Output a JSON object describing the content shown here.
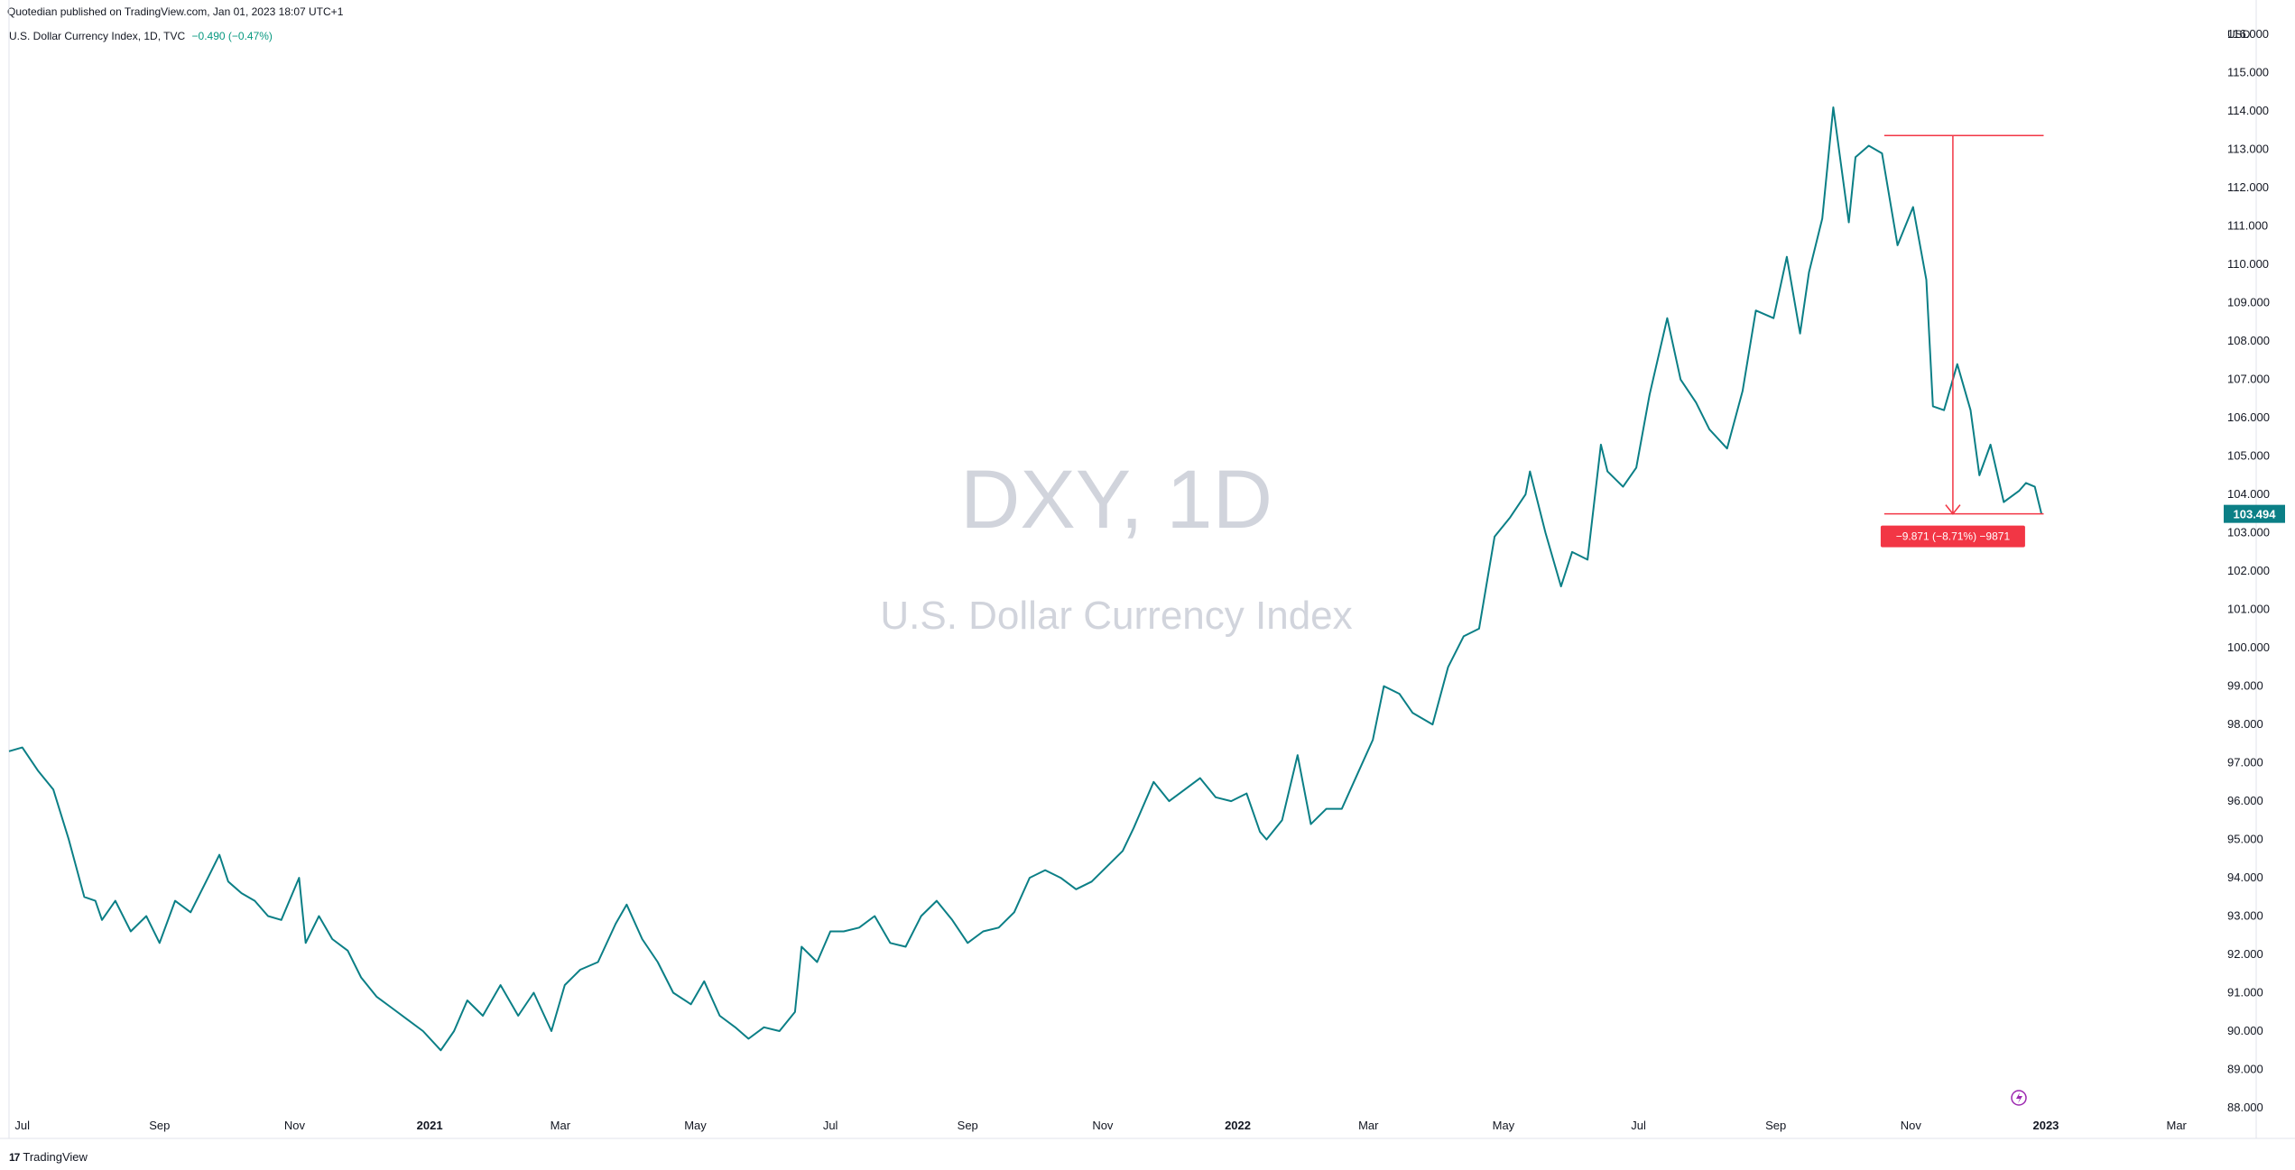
{
  "header": {
    "published": "Quotedian published on TradingView.com, Jan 01, 2023 18:07 UTC+1",
    "legend_name": "U.S. Dollar Currency Index, 1D, TVC",
    "legend_change": "−0.490 (−0.47%)"
  },
  "watermark": {
    "symbol": "DXY, 1D",
    "name": "U.S. Dollar Currency Index"
  },
  "footer": {
    "brand": "TradingView",
    "logo": "17"
  },
  "colors": {
    "line": "#0b7f86",
    "measure": "#f23645",
    "price_badge": "#0b7f86",
    "grid_text": "#131722",
    "watermark": "#d1d4dc"
  },
  "chart_data": {
    "type": "line",
    "currency_label": "USD",
    "y_ticks": [
      88,
      89,
      90,
      91,
      92,
      93,
      94,
      95,
      96,
      97,
      98,
      99,
      100,
      101,
      102,
      103,
      104,
      105,
      106,
      107,
      108,
      109,
      110,
      111,
      112,
      113,
      114,
      115,
      116
    ],
    "y_tick_labels": [
      "88.000",
      "89.000",
      "90.000",
      "91.000",
      "92.000",
      "93.000",
      "94.000",
      "95.000",
      "96.000",
      "97.000",
      "98.000",
      "99.000",
      "100.000",
      "101.000",
      "102.000",
      "103.000",
      "104.000",
      "105.000",
      "106.000",
      "107.000",
      "108.000",
      "109.000",
      "110.000",
      "111.000",
      "112.000",
      "113.000",
      "114.000",
      "115.000",
      "116.000"
    ],
    "ylim": [
      87.2,
      116.9
    ],
    "xlim": [
      "2020-06-25",
      "2023-04-06"
    ],
    "x_ticks": [
      {
        "date": "2020-07-01",
        "label": "Jul",
        "bold": false
      },
      {
        "date": "2020-09-01",
        "label": "Sep",
        "bold": false
      },
      {
        "date": "2020-11-01",
        "label": "Nov",
        "bold": false
      },
      {
        "date": "2021-01-01",
        "label": "2021",
        "bold": true
      },
      {
        "date": "2021-03-01",
        "label": "Mar",
        "bold": false
      },
      {
        "date": "2021-05-01",
        "label": "May",
        "bold": false
      },
      {
        "date": "2021-07-01",
        "label": "Jul",
        "bold": false
      },
      {
        "date": "2021-09-01",
        "label": "Sep",
        "bold": false
      },
      {
        "date": "2021-11-01",
        "label": "Nov",
        "bold": false
      },
      {
        "date": "2022-01-01",
        "label": "2022",
        "bold": true
      },
      {
        "date": "2022-03-01",
        "label": "Mar",
        "bold": false
      },
      {
        "date": "2022-05-01",
        "label": "May",
        "bold": false
      },
      {
        "date": "2022-07-01",
        "label": "Jul",
        "bold": false
      },
      {
        "date": "2022-09-01",
        "label": "Sep",
        "bold": false
      },
      {
        "date": "2022-11-01",
        "label": "Nov",
        "bold": false
      },
      {
        "date": "2023-01-01",
        "label": "2023",
        "bold": true
      },
      {
        "date": "2023-03-01",
        "label": "Mar",
        "bold": false
      }
    ],
    "series": [
      {
        "values": [
          [
            "2020-06-25",
            97.3
          ],
          [
            "2020-07-01",
            97.4
          ],
          [
            "2020-07-08",
            96.8
          ],
          [
            "2020-07-15",
            96.3
          ],
          [
            "2020-07-22",
            95.0
          ],
          [
            "2020-07-29",
            93.5
          ],
          [
            "2020-08-03",
            93.4
          ],
          [
            "2020-08-06",
            92.9
          ],
          [
            "2020-08-12",
            93.4
          ],
          [
            "2020-08-19",
            92.6
          ],
          [
            "2020-08-26",
            93.0
          ],
          [
            "2020-09-01",
            92.3
          ],
          [
            "2020-09-08",
            93.4
          ],
          [
            "2020-09-15",
            93.1
          ],
          [
            "2020-09-22",
            93.9
          ],
          [
            "2020-09-28",
            94.6
          ],
          [
            "2020-10-02",
            93.9
          ],
          [
            "2020-10-08",
            93.6
          ],
          [
            "2020-10-14",
            93.4
          ],
          [
            "2020-10-20",
            93.0
          ],
          [
            "2020-10-26",
            92.9
          ],
          [
            "2020-11-03",
            94.0
          ],
          [
            "2020-11-06",
            92.3
          ],
          [
            "2020-11-12",
            93.0
          ],
          [
            "2020-11-18",
            92.4
          ],
          [
            "2020-11-25",
            92.1
          ],
          [
            "2020-12-01",
            91.4
          ],
          [
            "2020-12-08",
            90.9
          ],
          [
            "2020-12-15",
            90.6
          ],
          [
            "2020-12-22",
            90.3
          ],
          [
            "2020-12-29",
            90.0
          ],
          [
            "2021-01-06",
            89.5
          ],
          [
            "2021-01-12",
            90.0
          ],
          [
            "2021-01-18",
            90.8
          ],
          [
            "2021-01-25",
            90.4
          ],
          [
            "2021-02-02",
            91.2
          ],
          [
            "2021-02-10",
            90.4
          ],
          [
            "2021-02-17",
            91.0
          ],
          [
            "2021-02-25",
            90.0
          ],
          [
            "2021-03-03",
            91.2
          ],
          [
            "2021-03-10",
            91.6
          ],
          [
            "2021-03-18",
            91.8
          ],
          [
            "2021-03-26",
            92.8
          ],
          [
            "2021-03-31",
            93.3
          ],
          [
            "2021-04-07",
            92.4
          ],
          [
            "2021-04-14",
            91.8
          ],
          [
            "2021-04-21",
            91.0
          ],
          [
            "2021-04-29",
            90.7
          ],
          [
            "2021-05-05",
            91.3
          ],
          [
            "2021-05-12",
            90.4
          ],
          [
            "2021-05-19",
            90.1
          ],
          [
            "2021-05-25",
            89.8
          ],
          [
            "2021-06-01",
            90.1
          ],
          [
            "2021-06-08",
            90.0
          ],
          [
            "2021-06-15",
            90.5
          ],
          [
            "2021-06-18",
            92.2
          ],
          [
            "2021-06-25",
            91.8
          ],
          [
            "2021-07-01",
            92.6
          ],
          [
            "2021-07-07",
            92.6
          ],
          [
            "2021-07-14",
            92.7
          ],
          [
            "2021-07-21",
            93.0
          ],
          [
            "2021-07-28",
            92.3
          ],
          [
            "2021-08-04",
            92.2
          ],
          [
            "2021-08-11",
            93.0
          ],
          [
            "2021-08-18",
            93.4
          ],
          [
            "2021-08-25",
            92.9
          ],
          [
            "2021-09-01",
            92.3
          ],
          [
            "2021-09-08",
            92.6
          ],
          [
            "2021-09-15",
            92.7
          ],
          [
            "2021-09-22",
            93.1
          ],
          [
            "2021-09-29",
            94.0
          ],
          [
            "2021-10-06",
            94.2
          ],
          [
            "2021-10-13",
            94.0
          ],
          [
            "2021-10-20",
            93.7
          ],
          [
            "2021-10-27",
            93.9
          ],
          [
            "2021-11-03",
            94.3
          ],
          [
            "2021-11-10",
            94.7
          ],
          [
            "2021-11-15",
            95.3
          ],
          [
            "2021-11-24",
            96.5
          ],
          [
            "2021-12-01",
            96.0
          ],
          [
            "2021-12-08",
            96.3
          ],
          [
            "2021-12-15",
            96.6
          ],
          [
            "2021-12-22",
            96.1
          ],
          [
            "2021-12-29",
            96.0
          ],
          [
            "2022-01-05",
            96.2
          ],
          [
            "2022-01-11",
            95.2
          ],
          [
            "2022-01-14",
            95.0
          ],
          [
            "2022-01-21",
            95.5
          ],
          [
            "2022-01-28",
            97.2
          ],
          [
            "2022-02-03",
            95.4
          ],
          [
            "2022-02-10",
            95.8
          ],
          [
            "2022-02-17",
            95.8
          ],
          [
            "2022-02-24",
            96.7
          ],
          [
            "2022-03-03",
            97.6
          ],
          [
            "2022-03-08",
            99.0
          ],
          [
            "2022-03-15",
            98.8
          ],
          [
            "2022-03-21",
            98.3
          ],
          [
            "2022-03-30",
            98.0
          ],
          [
            "2022-04-06",
            99.5
          ],
          [
            "2022-04-13",
            100.3
          ],
          [
            "2022-04-20",
            100.5
          ],
          [
            "2022-04-27",
            102.9
          ],
          [
            "2022-05-04",
            103.4
          ],
          [
            "2022-05-11",
            104.0
          ],
          [
            "2022-05-13",
            104.6
          ],
          [
            "2022-05-20",
            103.0
          ],
          [
            "2022-05-27",
            101.6
          ],
          [
            "2022-06-01",
            102.5
          ],
          [
            "2022-06-08",
            102.3
          ],
          [
            "2022-06-14",
            105.3
          ],
          [
            "2022-06-17",
            104.6
          ],
          [
            "2022-06-24",
            104.2
          ],
          [
            "2022-06-30",
            104.7
          ],
          [
            "2022-07-06",
            106.6
          ],
          [
            "2022-07-14",
            108.6
          ],
          [
            "2022-07-20",
            107.0
          ],
          [
            "2022-07-27",
            106.4
          ],
          [
            "2022-08-02",
            105.7
          ],
          [
            "2022-08-10",
            105.2
          ],
          [
            "2022-08-17",
            106.7
          ],
          [
            "2022-08-23",
            108.8
          ],
          [
            "2022-08-31",
            108.6
          ],
          [
            "2022-09-06",
            110.2
          ],
          [
            "2022-09-12",
            108.2
          ],
          [
            "2022-09-16",
            109.8
          ],
          [
            "2022-09-22",
            111.2
          ],
          [
            "2022-09-27",
            114.1
          ],
          [
            "2022-10-04",
            111.1
          ],
          [
            "2022-10-07",
            112.8
          ],
          [
            "2022-10-13",
            113.1
          ],
          [
            "2022-10-19",
            112.9
          ],
          [
            "2022-10-26",
            110.5
          ],
          [
            "2022-11-02",
            111.5
          ],
          [
            "2022-11-08",
            109.6
          ],
          [
            "2022-11-11",
            106.3
          ],
          [
            "2022-11-16",
            106.2
          ],
          [
            "2022-11-22",
            107.4
          ],
          [
            "2022-11-28",
            106.2
          ],
          [
            "2022-12-02",
            104.5
          ],
          [
            "2022-12-07",
            105.3
          ],
          [
            "2022-12-13",
            103.8
          ],
          [
            "2022-12-20",
            104.1
          ],
          [
            "2022-12-23",
            104.3
          ],
          [
            "2022-12-27",
            104.2
          ],
          [
            "2022-12-30",
            103.5
          ]
        ]
      }
    ],
    "last_price": {
      "value": 103.494,
      "label": "103.494"
    },
    "measure": {
      "from_date": "2022-10-20",
      "to_date": "2022-12-31",
      "x_date": "2022-11-20",
      "high": 113.365,
      "low": 103.494,
      "label": "−9.871 (−8.71%) −9871"
    }
  }
}
